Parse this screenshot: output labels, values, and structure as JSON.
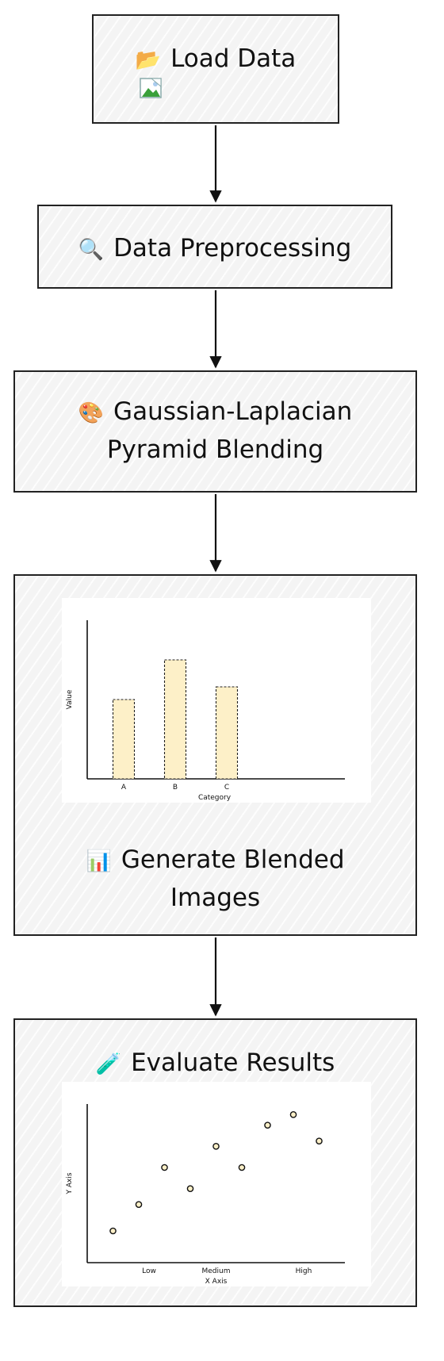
{
  "nodes": {
    "load": {
      "icon": "📂",
      "label": "Load Data",
      "image_icon": "broken-image-icon"
    },
    "preprocess": {
      "icon": "🔍",
      "label": "Data Preprocessing"
    },
    "blending": {
      "icon": "🎨",
      "line1": "Gaussian-Laplacian",
      "line2": "Pyramid Blending"
    },
    "generate": {
      "icon": "📊",
      "line1": "Generate Blended",
      "line2": "Images"
    },
    "evaluate": {
      "icon": "🧪",
      "label": "Evaluate Results"
    }
  },
  "chart_data": [
    {
      "type": "bar",
      "categories": [
        "A",
        "B",
        "C"
      ],
      "values": [
        5,
        7.5,
        5.8
      ],
      "ylim": [
        0,
        10
      ],
      "xlabel": "Category",
      "ylabel": "Value",
      "bar_color": "#fdf0c8"
    },
    {
      "type": "scatter",
      "xticks": [
        "Low",
        "Medium",
        "High"
      ],
      "x": [
        0.5,
        1,
        1.5,
        2,
        2.5,
        3,
        3.5,
        4,
        4.5
      ],
      "y": [
        1.2,
        2.2,
        3.6,
        2.8,
        4.4,
        3.6,
        5.2,
        5.6,
        4.6
      ],
      "ylim": [
        0,
        6
      ],
      "xlim": [
        0,
        5
      ],
      "xlabel": "X Axis",
      "ylabel": "Y Axis",
      "point_color": "#fdf0c8"
    }
  ]
}
